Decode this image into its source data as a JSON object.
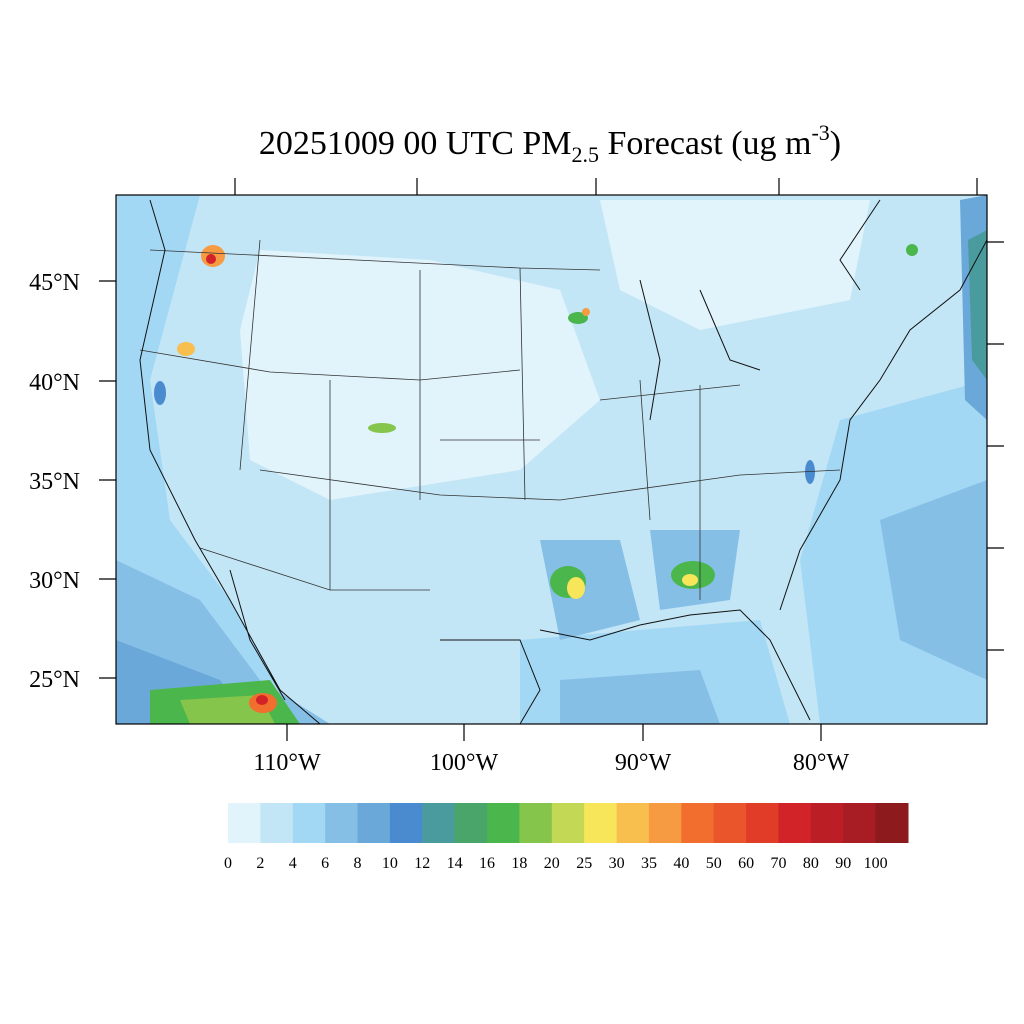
{
  "map": {
    "title": {
      "main": "20251009 00 UTC PM",
      "subscript": "2.5",
      "middle": " Forecast (ug m",
      "superscript": "-3",
      "end": ")"
    },
    "lat_labels": [
      "45°N",
      "40°N",
      "35°N",
      "30°N",
      "25°N"
    ],
    "lon_labels": [
      "110°W",
      "100°W",
      "90°W",
      "80°W"
    ],
    "colorbar": {
      "levels": [
        0,
        2,
        4,
        6,
        8,
        10,
        12,
        14,
        16,
        18,
        20,
        25,
        30,
        35,
        40,
        50,
        60,
        70,
        80,
        90,
        100
      ],
      "colors": [
        "#e1f3fb",
        "#c3e6f7",
        "#a3d8f4",
        "#86bfe6",
        "#6aa8da",
        "#4a8bcf",
        "#4a9b9d",
        "#4aa56b",
        "#4bb64b",
        "#86c54b",
        "#c3d955",
        "#f7e65a",
        "#f8be4e",
        "#f79b43",
        "#f26e2f",
        "#eb552b",
        "#e03c28",
        "#d22329",
        "#bc1e26",
        "#a81c24",
        "#8d1a1d"
      ]
    }
  }
}
